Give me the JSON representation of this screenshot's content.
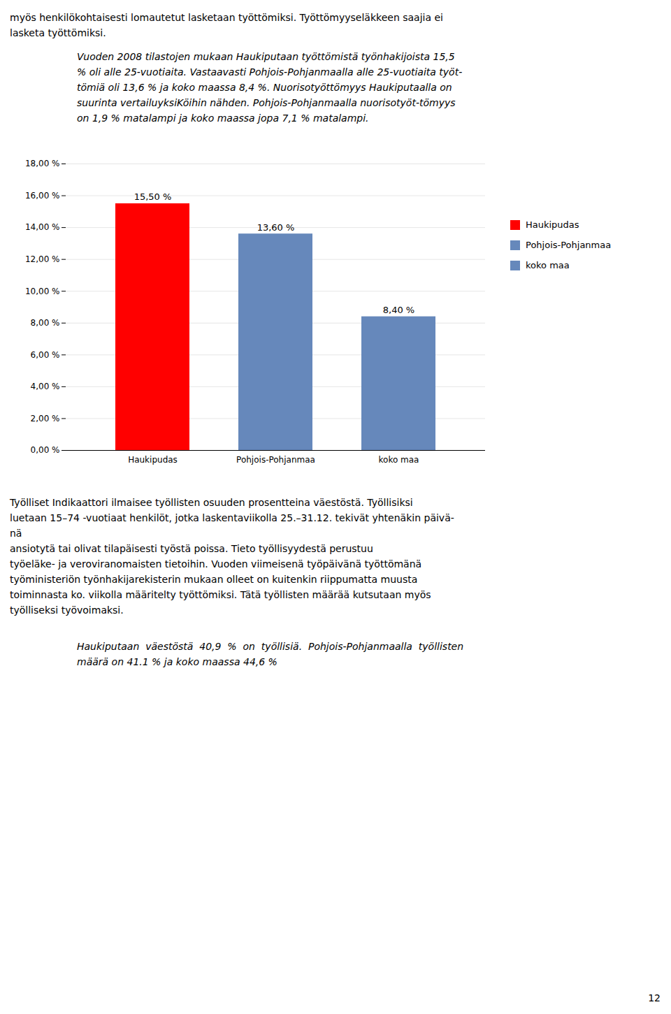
{
  "chart_data": {
    "type": "bar",
    "categories": [
      "Haukipudas",
      "Pohjois-Pohjanmaa",
      "koko maa"
    ],
    "values": [
      15.5,
      13.6,
      8.4
    ],
    "value_labels": [
      "15,50 %",
      "13,60 %",
      "8,40 %"
    ],
    "colors": [
      "#FF0000",
      "#6688BB",
      "#6688BB"
    ],
    "ylim": [
      0,
      18
    ],
    "yticks": [
      {
        "value": 0,
        "label": "0,00 %"
      },
      {
        "value": 2,
        "label": "2,00 %"
      },
      {
        "value": 4,
        "label": "4,00 %"
      },
      {
        "value": 6,
        "label": "6,00 %"
      },
      {
        "value": 8,
        "label": "8,00 %"
      },
      {
        "value": 10,
        "label": "10,00 %"
      },
      {
        "value": 12,
        "label": "12,00 %"
      },
      {
        "value": 14,
        "label": "14,00 %"
      },
      {
        "value": 16,
        "label": "16,00 %"
      },
      {
        "value": 18,
        "label": "18,00 %"
      }
    ],
    "grid": true,
    "data_labels": true,
    "legend": "right",
    "annotations": {
      "header": [
        "myös henkilökohtaisesti lomautetut lasketaan työttömiksi. Työttömyyseläkkeen saajia ei",
        "lasketa työttömiksi."
      ],
      "paragraph": [
        "Vuoden 2008 tilastojen mukaan Haukiputaan työttömistä työnhakijoista 15,5",
        "% oli alle 25-vuotiaita. Vastaavasti Pohjois-Pohjanmaalla alle 25-vuotiaita työt-",
        "tömiä oli 13,6 % ja koko maassa 8,4 %. Nuorisotyöttömyys Haukiputaalla on",
        "suurinta vertailuyksiKöihin nähden. Pohjois-Pohjanmaalla nuorisotyöt-tömyys",
        "on 1,9 % matalampi ja koko maassa jopa 7,1 % matalampi."
      ],
      "body": [
        "Työlliset Indikaattori ilmaisee työllisten osuuden prosentteina väestöstä. Työllisiksi",
        "luetaan 15–74 -vuotiaat henkilöt, jotka laskentaviikolla 25.–31.12. tekivät yhtenäkin päivä-",
        "nä",
        "ansiotytä tai olivat tilapäisesti työstä poissa. Tieto työllisyydestä perustuu",
        "työeläke- ja veroviranomaisten tietoihin. Vuoden viimeisenä työpäivänä työttömänä",
        "työministeriön työnhakijarekisterin mukaan olleet on kuitenkin riippumatta muusta",
        "toiminnasta ko. viikolla määritelty työttömiksi. Tätä työllisten määrää kutsutaan myös",
        "työlliseksi työvoimaksi."
      ],
      "quote": [
        "Haukiputaan  väestöstä  40,9  %  on  työllisiä.  Pohjois-Pohjanmaalla  työllisten",
        "määrä on 41.1 % ja koko maassa 44,6 %"
      ],
      "page_number": "12"
    }
  }
}
